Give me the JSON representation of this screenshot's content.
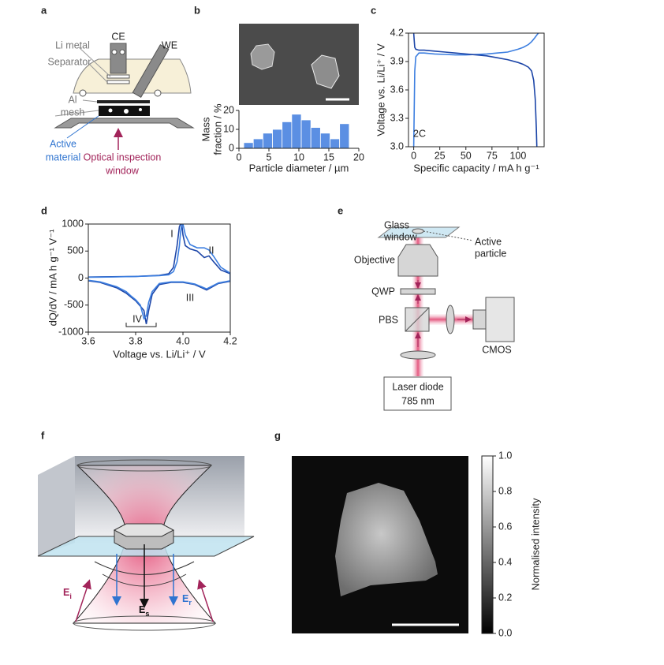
{
  "chart_data": [
    {
      "panel": "b",
      "type": "histogram",
      "xlabel": "Particle diameter / µm",
      "ylabel": [
        "Mass",
        "fraction / %"
      ],
      "bins": [
        0.8,
        2.4,
        4,
        5.6,
        7.2,
        8.8,
        10.4,
        12,
        13.6,
        15.2,
        16.8,
        18.4
      ],
      "values": [
        3,
        5,
        8,
        10,
        14,
        18,
        15,
        11,
        8,
        5,
        13
      ],
      "color": "#5b8fe3",
      "xlim": [
        0,
        20
      ],
      "xticks": [
        0,
        5,
        10,
        15,
        20
      ],
      "ylim": [
        0,
        20
      ],
      "yticks": [
        0,
        10,
        20
      ]
    },
    {
      "panel": "c",
      "type": "line",
      "xlabel": "Specific capacity / mA h g⁻¹",
      "ylabel": [
        "Voltage vs. Li/Li⁺ / V"
      ],
      "annotations": [
        "2C"
      ],
      "xlim": [
        -5,
        125
      ],
      "xticks": [
        0,
        25,
        50,
        75,
        100
      ],
      "ylim": [
        3,
        4.2
      ],
      "yticks": [
        {
          "value": 3,
          "label": "3.0"
        },
        3.3,
        3.6,
        3.9,
        4.2
      ],
      "series": [
        {
          "color": "#3d7fe0",
          "x": [
            0,
            0.5,
            1,
            2,
            5,
            10,
            20,
            30,
            40,
            50,
            60,
            70,
            80,
            90,
            100,
            105,
            110,
            113,
            116,
            118,
            119.5
          ],
          "values": [
            3.0,
            3.4,
            3.8,
            3.95,
            3.99,
            3.99,
            3.98,
            3.975,
            3.97,
            3.97,
            3.975,
            3.98,
            3.99,
            4.0,
            4.03,
            4.05,
            4.08,
            4.11,
            4.15,
            4.18,
            4.2
          ]
        },
        {
          "color": "#1d46a8",
          "x": [
            0,
            0.5,
            1,
            2,
            5,
            10,
            20,
            30,
            40,
            50,
            60,
            70,
            80,
            90,
            100,
            105,
            110,
            113,
            115,
            116.5,
            117.5,
            118
          ],
          "values": [
            4.2,
            4.12,
            4.05,
            4.03,
            4.02,
            4.02,
            4.01,
            4.0,
            3.99,
            3.98,
            3.97,
            3.96,
            3.94,
            3.92,
            3.89,
            3.87,
            3.84,
            3.8,
            3.7,
            3.5,
            3.2,
            3.0
          ]
        }
      ]
    },
    {
      "panel": "d",
      "type": "line",
      "xlabel": "Voltage vs. Li/Li⁺ / V",
      "ylabel": [
        "dQ/dV / mA h g⁻¹ V⁻¹"
      ],
      "annotations": [
        "I",
        "II",
        "III",
        "IV"
      ],
      "xlim": [
        3.6,
        4.2
      ],
      "xticks": [
        3.6,
        3.8,
        {
          "value": 4,
          "label": "4.0"
        },
        4.2
      ],
      "ylim": [
        -1000,
        1000
      ],
      "yticks": [
        -1000,
        -500,
        0,
        500,
        1000
      ],
      "series": [
        {
          "color": "#1d46a8",
          "x": [
            3.6,
            3.7,
            3.8,
            3.9,
            3.94,
            3.96,
            3.975,
            3.985,
            3.99,
            3.995,
            4.0,
            4.01,
            4.03,
            4.06,
            4.09,
            4.11,
            4.13,
            4.16,
            4.2,
            4.2,
            4.15,
            4.1,
            4.05,
            4.0,
            3.95,
            3.9,
            3.87,
            3.855,
            3.845,
            3.835,
            3.82,
            3.8,
            3.78,
            3.76,
            3.72,
            3.65,
            3.6
          ],
          "values": [
            20,
            25,
            30,
            50,
            80,
            200,
            600,
            950,
            1000,
            1000,
            800,
            600,
            540,
            500,
            380,
            410,
            300,
            150,
            80,
            -60,
            -100,
            -220,
            -120,
            -80,
            -80,
            -120,
            -300,
            -600,
            -850,
            -600,
            -520,
            -420,
            -350,
            -280,
            -180,
            -80,
            -50
          ]
        },
        {
          "color": "#3d7fe0",
          "x": [
            3.6,
            3.7,
            3.8,
            3.9,
            3.94,
            3.96,
            3.975,
            3.985,
            3.99,
            3.995,
            4.0,
            4.01,
            4.03,
            4.06,
            4.09,
            4.11,
            4.13,
            4.16,
            4.2,
            4.2,
            4.15,
            4.1,
            4.05,
            4.0,
            3.95,
            3.9,
            3.87,
            3.855,
            3.845,
            3.835,
            3.82,
            3.8,
            3.78,
            3.76,
            3.72,
            3.65,
            3.6
          ],
          "values": [
            15,
            20,
            30,
            45,
            60,
            120,
            300,
            600,
            850,
            1000,
            1000,
            800,
            620,
            560,
            560,
            520,
            400,
            200,
            90,
            -50,
            -90,
            -200,
            -110,
            -70,
            -70,
            -100,
            -250,
            -450,
            -700,
            -750,
            -500,
            -400,
            -330,
            -250,
            -160,
            -70,
            -40
          ]
        }
      ]
    },
    {
      "panel": "g",
      "type": "colorbar",
      "ylabel": [
        "Normalised intensity"
      ],
      "ylim": [
        0,
        1
      ],
      "yticks": [
        {
          "value": 0,
          "label": "0.0"
        },
        0.2,
        0.4,
        0.6,
        0.8,
        {
          "value": 1,
          "label": "1.0"
        }
      ]
    }
  ],
  "diagram_a": {
    "panel": "a",
    "ce": "CE",
    "we": "WE",
    "li_metal": "Li metal",
    "separator": "Separator",
    "al_mesh": [
      "Al",
      "mesh"
    ],
    "active_material": [
      "Active",
      "material"
    ],
    "window": [
      "Optical inspection",
      "window"
    ]
  },
  "diagram_e": {
    "panel": "e",
    "glass_window": [
      "Glass",
      "window"
    ],
    "active_particle": [
      "Active",
      "particle"
    ],
    "objective": "Objective",
    "qwp": "QWP",
    "pbs": "PBS",
    "cmos": "CMOS",
    "laser": [
      "Laser diode",
      "785 nm"
    ]
  },
  "diagram_f": {
    "panel": "f",
    "fields": [
      {
        "symbol": "E",
        "subscript": "i"
      },
      {
        "symbol": "E",
        "subscript": "s"
      },
      {
        "symbol": "E",
        "subscript": "r"
      }
    ]
  }
}
